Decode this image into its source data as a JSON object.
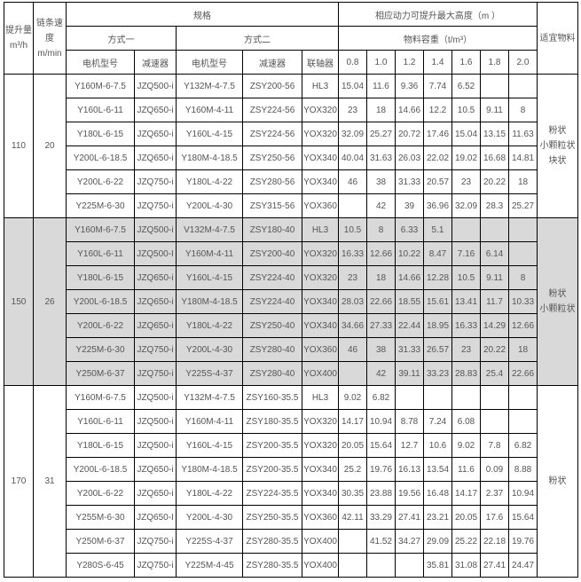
{
  "header": {
    "capacity": "提升量",
    "capacity_unit": "m³/h",
    "chain_speed": "链条速度",
    "chain_speed_unit": "m/min",
    "spec": "规格",
    "mode1": "方式一",
    "mode2": "方式二",
    "motor": "电机型号",
    "reducer": "减速器",
    "motor2": "电机型号",
    "reducer2": "减速器",
    "coupling": "联轴器",
    "max_height": "相应动力可提升最大高度（m ）",
    "density": "物料容重（t/m³）",
    "densities": [
      "0.8",
      "1.0",
      "1.2",
      "1.4",
      "1.6",
      "1.8",
      "2.0"
    ],
    "material": "适宜物料"
  },
  "sections": [
    {
      "capacity": "110",
      "speed": "20",
      "material": [
        "粉状",
        "小颗粒状",
        "块状"
      ],
      "shaded": false,
      "rows": [
        [
          "Y160M-6-7.5",
          "JZQ500-i",
          "Y132M-4-7.5",
          "ZSY200-56",
          "HL3",
          "15.04",
          "11.6",
          "9.36",
          "7.74",
          "6.52",
          "",
          ""
        ],
        [
          "Y160L-6-11",
          "JZQ650-i",
          "Y160M-4-11",
          "ZSY224-56",
          "YOX320",
          "23",
          "18",
          "14.66",
          "12.2",
          "10.5",
          "9.11",
          "8"
        ],
        [
          "Y180L-6-15",
          "JZQ650-i",
          "Y160L-4-15",
          "ZSY224-56",
          "YOX320",
          "32.09",
          "25.27",
          "20.72",
          "17.46",
          "15.04",
          "13.15",
          "11.63"
        ],
        [
          "Y200L-6-18.5",
          "JZQ650-i",
          "Y180M-4-18.5",
          "ZSY250-56",
          "YOX340",
          "40.04",
          "31.63",
          "26.03",
          "22.02",
          "19.02",
          "16.68",
          "14.81"
        ],
        [
          "Y200L-6-22",
          "JZQ750-i",
          "Y180L-4-22",
          "ZSY280-56",
          "YOX340",
          "46",
          "38",
          "31.33",
          "20.57",
          "23",
          "20.22",
          "18"
        ],
        [
          "Y225M-6-30",
          "JZQ750-i",
          "Y200L-4-30",
          "ZSY315-56",
          "YOX360",
          "",
          "42",
          "39",
          "36.96",
          "32.09",
          "28.3",
          "25.27"
        ]
      ]
    },
    {
      "capacity": "150",
      "speed": "26",
      "material": [
        "粉状",
        "小颗粒状"
      ],
      "shaded": true,
      "rows": [
        [
          "Y160M-6-7.5",
          "JZQ500-i",
          "V132M-4-7.5",
          "ZSY180-40",
          "HL3",
          "10.5",
          "8",
          "6.33",
          "5.1",
          "",
          "",
          ""
        ],
        [
          "Y160L-6-11",
          "JZQ500-I",
          "Y160M-4-11",
          "ZSY200-40",
          "YOX320",
          "16.33",
          "12.66",
          "10.22",
          "8.47",
          "7.16",
          "6.14",
          ""
        ],
        [
          "Y180L-6-15",
          "JZQ650-i",
          "Y160L-4-15",
          "ZSY224-40",
          "YOX320",
          "23",
          "18",
          "14.66",
          "12.28",
          "10.5",
          "9.11",
          "8"
        ],
        [
          "Y200L-6-18.5",
          "JZQ650-i",
          "Y180M-4-18.5",
          "ZSY224-40",
          "YOX340",
          "28.03",
          "22.66",
          "18.55",
          "15.61",
          "13.41",
          "11.7",
          "10.33"
        ],
        [
          "Y200L-6-22",
          "JZQ650-i",
          "Y180L-4-22",
          "ZSY250-40",
          "YOX340",
          "34.66",
          "27.33",
          "22.44",
          "18.95",
          "16.33",
          "14.29",
          "12.66"
        ],
        [
          "Y225M-6-30",
          "JZQ750-i",
          "Y200L-4-30",
          "ZSY280-40",
          "YOX360",
          "46",
          "38",
          "31.33",
          "26.57",
          "23",
          "20.22",
          "18"
        ],
        [
          "Y250M-6-37",
          "JZQ750-i",
          "Y225S-4-37",
          "ZSY280-40",
          "YOX400",
          "",
          "42",
          "39.11",
          "33.23",
          "28.83",
          "25.4",
          "22.66"
        ]
      ]
    },
    {
      "capacity": "170",
      "speed": "31",
      "material": [
        "粉状"
      ],
      "shaded": false,
      "rows": [
        [
          "Y160M-6-7.5",
          "JZQ500-i",
          "Y132M-4-7.5",
          "ZSY160-35.5",
          "HL3",
          "9.02",
          "6.82",
          "",
          "",
          "",
          "",
          ""
        ],
        [
          "Y160L-6-11",
          "JZQ500-i",
          "Y160M-4-11",
          "ZSY180-35.5",
          "YOX320",
          "14.17",
          "10.94",
          "8.78",
          "7.24",
          "6.08",
          "",
          ""
        ],
        [
          "Y180L-6-15",
          "JZQ500-i",
          "Y160L-4-15",
          "ZSY200-35.5",
          "YOX320",
          "20.05",
          "15.64",
          "12.7",
          "10.6",
          "9.02",
          "7.8",
          "6.82"
        ],
        [
          "Y200L-6-18.5",
          "JZQ650-i",
          "Y180M-4-18.5",
          "ZSY200-35.5",
          "YOX340",
          "25.2",
          "19.76",
          "16.13",
          "13.54",
          "11.6",
          "0.09",
          "8.88"
        ],
        [
          "Y200L-6-22",
          "JZQ650-i",
          "Y180L-4-22",
          "ZSY224-35.5",
          "YOX340",
          "30.35",
          "23.88",
          "19.56",
          "16.48",
          "14.17",
          "2.37",
          "10.94"
        ],
        [
          "Y255M-6-30",
          "JZQ650-I",
          "Y200L-4-30",
          "ZSY250-35.5",
          "YOX360",
          "42.11",
          "33.29",
          "27.41",
          "23.21",
          "20.05",
          "17.6",
          "15.64"
        ],
        [
          "Y250M-6-37",
          "JZQ750-i",
          "Y225S-4-37",
          "ZSY280-35.5",
          "YOX400",
          "",
          "41.52",
          "34.27",
          "29.09",
          "25.22",
          "22.18",
          "19.76"
        ],
        [
          "Y280S-6-45",
          "JZQ750-i",
          "Y225M-4-45",
          "ZSY280-35.5",
          "YOX400",
          "",
          "",
          "",
          "35.81",
          "31.08",
          "27.41",
          "24.47"
        ]
      ]
    }
  ]
}
